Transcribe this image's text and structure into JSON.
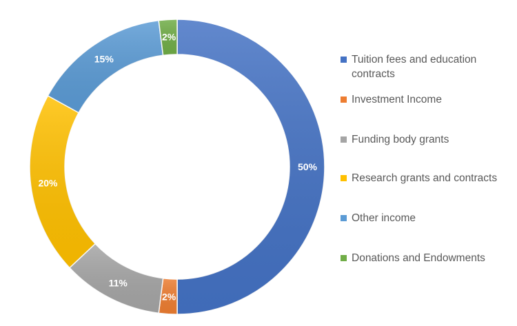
{
  "chart_data": {
    "type": "pie",
    "variant": "donut",
    "title": "",
    "categories": [
      "Tuition fees and education contracts",
      "Investment Income",
      "Funding body grants",
      "Research grants and contracts",
      "Other income",
      "Donations and Endowments"
    ],
    "values": [
      50,
      2,
      11,
      20,
      15,
      2
    ],
    "data_labels": [
      "50%",
      "2%",
      "11%",
      "20%",
      "15%",
      "2%"
    ],
    "colors": [
      "#4472C4",
      "#ED7D31",
      "#A5A5A5",
      "#FFC000",
      "#5B9BD5",
      "#70AD47"
    ],
    "legend_position": "right",
    "start_angle": "12 o'clock",
    "direction": "clockwise"
  }
}
